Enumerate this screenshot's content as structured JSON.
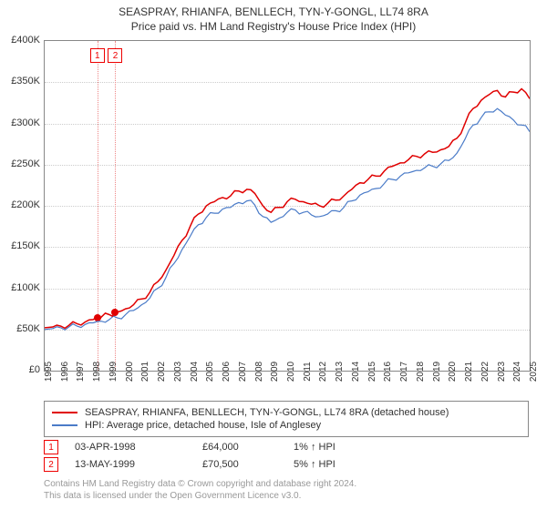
{
  "title": "SEASPRAY, RHIANFA, BENLLECH, TYN-Y-GONGL, LL74 8RA",
  "subtitle": "Price paid vs. HM Land Registry's House Price Index (HPI)",
  "chart": {
    "type": "line",
    "xlim": [
      1995,
      2025
    ],
    "ylim": [
      0,
      400000
    ],
    "ytick_step": 50000,
    "ytick_prefix": "£",
    "ytick_suffix": "K",
    "xtick_step": 1,
    "grid_color": "#cccccc",
    "border_color": "#888888",
    "background_color": "#ffffff",
    "series": [
      {
        "name": "red",
        "label": "SEASPRAY, RHIANFA, BENLLECH, TYN-Y-GONGL, LL74 8RA (detached house)",
        "color": "#e00000",
        "width": 1.5,
        "data": [
          [
            1995,
            52000
          ],
          [
            1995.5,
            53000
          ],
          [
            1996,
            54000
          ],
          [
            1996.5,
            55000
          ],
          [
            1997,
            57000
          ],
          [
            1997.5,
            59000
          ],
          [
            1998,
            62000
          ],
          [
            1998.25,
            64000
          ],
          [
            1998.5,
            65000
          ],
          [
            1999,
            68000
          ],
          [
            1999.37,
            70500
          ],
          [
            1999.5,
            71000
          ],
          [
            2000,
            75000
          ],
          [
            2000.5,
            80000
          ],
          [
            2001,
            87000
          ],
          [
            2001.5,
            95000
          ],
          [
            2002,
            108000
          ],
          [
            2002.5,
            122000
          ],
          [
            2003,
            140000
          ],
          [
            2003.5,
            158000
          ],
          [
            2004,
            175000
          ],
          [
            2004.5,
            190000
          ],
          [
            2005,
            200000
          ],
          [
            2005.5,
            205000
          ],
          [
            2006,
            210000
          ],
          [
            2006.5,
            212000
          ],
          [
            2007,
            218000
          ],
          [
            2007.5,
            220000
          ],
          [
            2008,
            215000
          ],
          [
            2008.5,
            200000
          ],
          [
            2009,
            192000
          ],
          [
            2009.5,
            198000
          ],
          [
            2010,
            205000
          ],
          [
            2010.5,
            208000
          ],
          [
            2011,
            205000
          ],
          [
            2011.5,
            202000
          ],
          [
            2012,
            200000
          ],
          [
            2012.5,
            203000
          ],
          [
            2013,
            207000
          ],
          [
            2013.5,
            212000
          ],
          [
            2014,
            220000
          ],
          [
            2014.5,
            228000
          ],
          [
            2015,
            232000
          ],
          [
            2015.5,
            236000
          ],
          [
            2016,
            242000
          ],
          [
            2016.5,
            248000
          ],
          [
            2017,
            252000
          ],
          [
            2017.5,
            256000
          ],
          [
            2018,
            260000
          ],
          [
            2018.5,
            263000
          ],
          [
            2019,
            265000
          ],
          [
            2019.5,
            268000
          ],
          [
            2020,
            272000
          ],
          [
            2020.5,
            282000
          ],
          [
            2021,
            300000
          ],
          [
            2021.5,
            318000
          ],
          [
            2022,
            328000
          ],
          [
            2022.5,
            335000
          ],
          [
            2023,
            340000
          ],
          [
            2023.5,
            332000
          ],
          [
            2024,
            338000
          ],
          [
            2024.5,
            342000
          ],
          [
            2025,
            330000
          ]
        ]
      },
      {
        "name": "blue",
        "label": "HPI: Average price, detached house, Isle of Anglesey",
        "color": "#4a7bc8",
        "width": 1.2,
        "data": [
          [
            1995,
            50000
          ],
          [
            1995.5,
            51000
          ],
          [
            1996,
            52000
          ],
          [
            1996.5,
            53000
          ],
          [
            1997,
            54000
          ],
          [
            1997.5,
            56000
          ],
          [
            1998,
            58000
          ],
          [
            1998.5,
            60000
          ],
          [
            1999,
            62000
          ],
          [
            1999.5,
            64000
          ],
          [
            2000,
            68000
          ],
          [
            2000.5,
            73000
          ],
          [
            2001,
            80000
          ],
          [
            2001.5,
            88000
          ],
          [
            2002,
            100000
          ],
          [
            2002.5,
            113000
          ],
          [
            2003,
            130000
          ],
          [
            2003.5,
            147000
          ],
          [
            2004,
            163000
          ],
          [
            2004.5,
            177000
          ],
          [
            2005,
            186000
          ],
          [
            2005.5,
            191000
          ],
          [
            2006,
            196000
          ],
          [
            2006.5,
            198000
          ],
          [
            2007,
            204000
          ],
          [
            2007.5,
            206000
          ],
          [
            2008,
            201000
          ],
          [
            2008.5,
            187000
          ],
          [
            2009,
            180000
          ],
          [
            2009.5,
            185000
          ],
          [
            2010,
            192000
          ],
          [
            2010.5,
            195000
          ],
          [
            2011,
            192000
          ],
          [
            2011.5,
            189000
          ],
          [
            2012,
            187000
          ],
          [
            2012.5,
            190000
          ],
          [
            2013,
            194000
          ],
          [
            2013.5,
            198000
          ],
          [
            2014,
            206000
          ],
          [
            2014.5,
            213000
          ],
          [
            2015,
            217000
          ],
          [
            2015.5,
            221000
          ],
          [
            2016,
            227000
          ],
          [
            2016.5,
            232000
          ],
          [
            2017,
            236000
          ],
          [
            2017.5,
            240000
          ],
          [
            2018,
            243000
          ],
          [
            2018.5,
            246000
          ],
          [
            2019,
            248000
          ],
          [
            2019.5,
            251000
          ],
          [
            2020,
            255000
          ],
          [
            2020.5,
            264000
          ],
          [
            2021,
            281000
          ],
          [
            2021.5,
            298000
          ],
          [
            2022,
            307000
          ],
          [
            2022.5,
            314000
          ],
          [
            2023,
            318000
          ],
          [
            2023.5,
            310000
          ],
          [
            2024,
            304000
          ],
          [
            2024.5,
            298000
          ],
          [
            2025,
            290000
          ]
        ]
      }
    ],
    "sale_points": [
      {
        "id": "1",
        "x": 1998.26,
        "y": 64000
      },
      {
        "id": "2",
        "x": 1999.37,
        "y": 70500
      }
    ]
  },
  "legend": {
    "items": [
      {
        "color": "#e00000",
        "label_key": "chart.series.0.label"
      },
      {
        "color": "#4a7bc8",
        "label_key": "chart.series.1.label"
      }
    ]
  },
  "sales": [
    {
      "marker": "1",
      "date": "03-APR-1998",
      "price": "£64,000",
      "pct": "1% ↑ HPI"
    },
    {
      "marker": "2",
      "date": "13-MAY-1999",
      "price": "£70,500",
      "pct": "5% ↑ HPI"
    }
  ],
  "footer_line1": "Contains HM Land Registry data © Crown copyright and database right 2024.",
  "footer_line2": "This data is licensed under the Open Government Licence v3.0."
}
